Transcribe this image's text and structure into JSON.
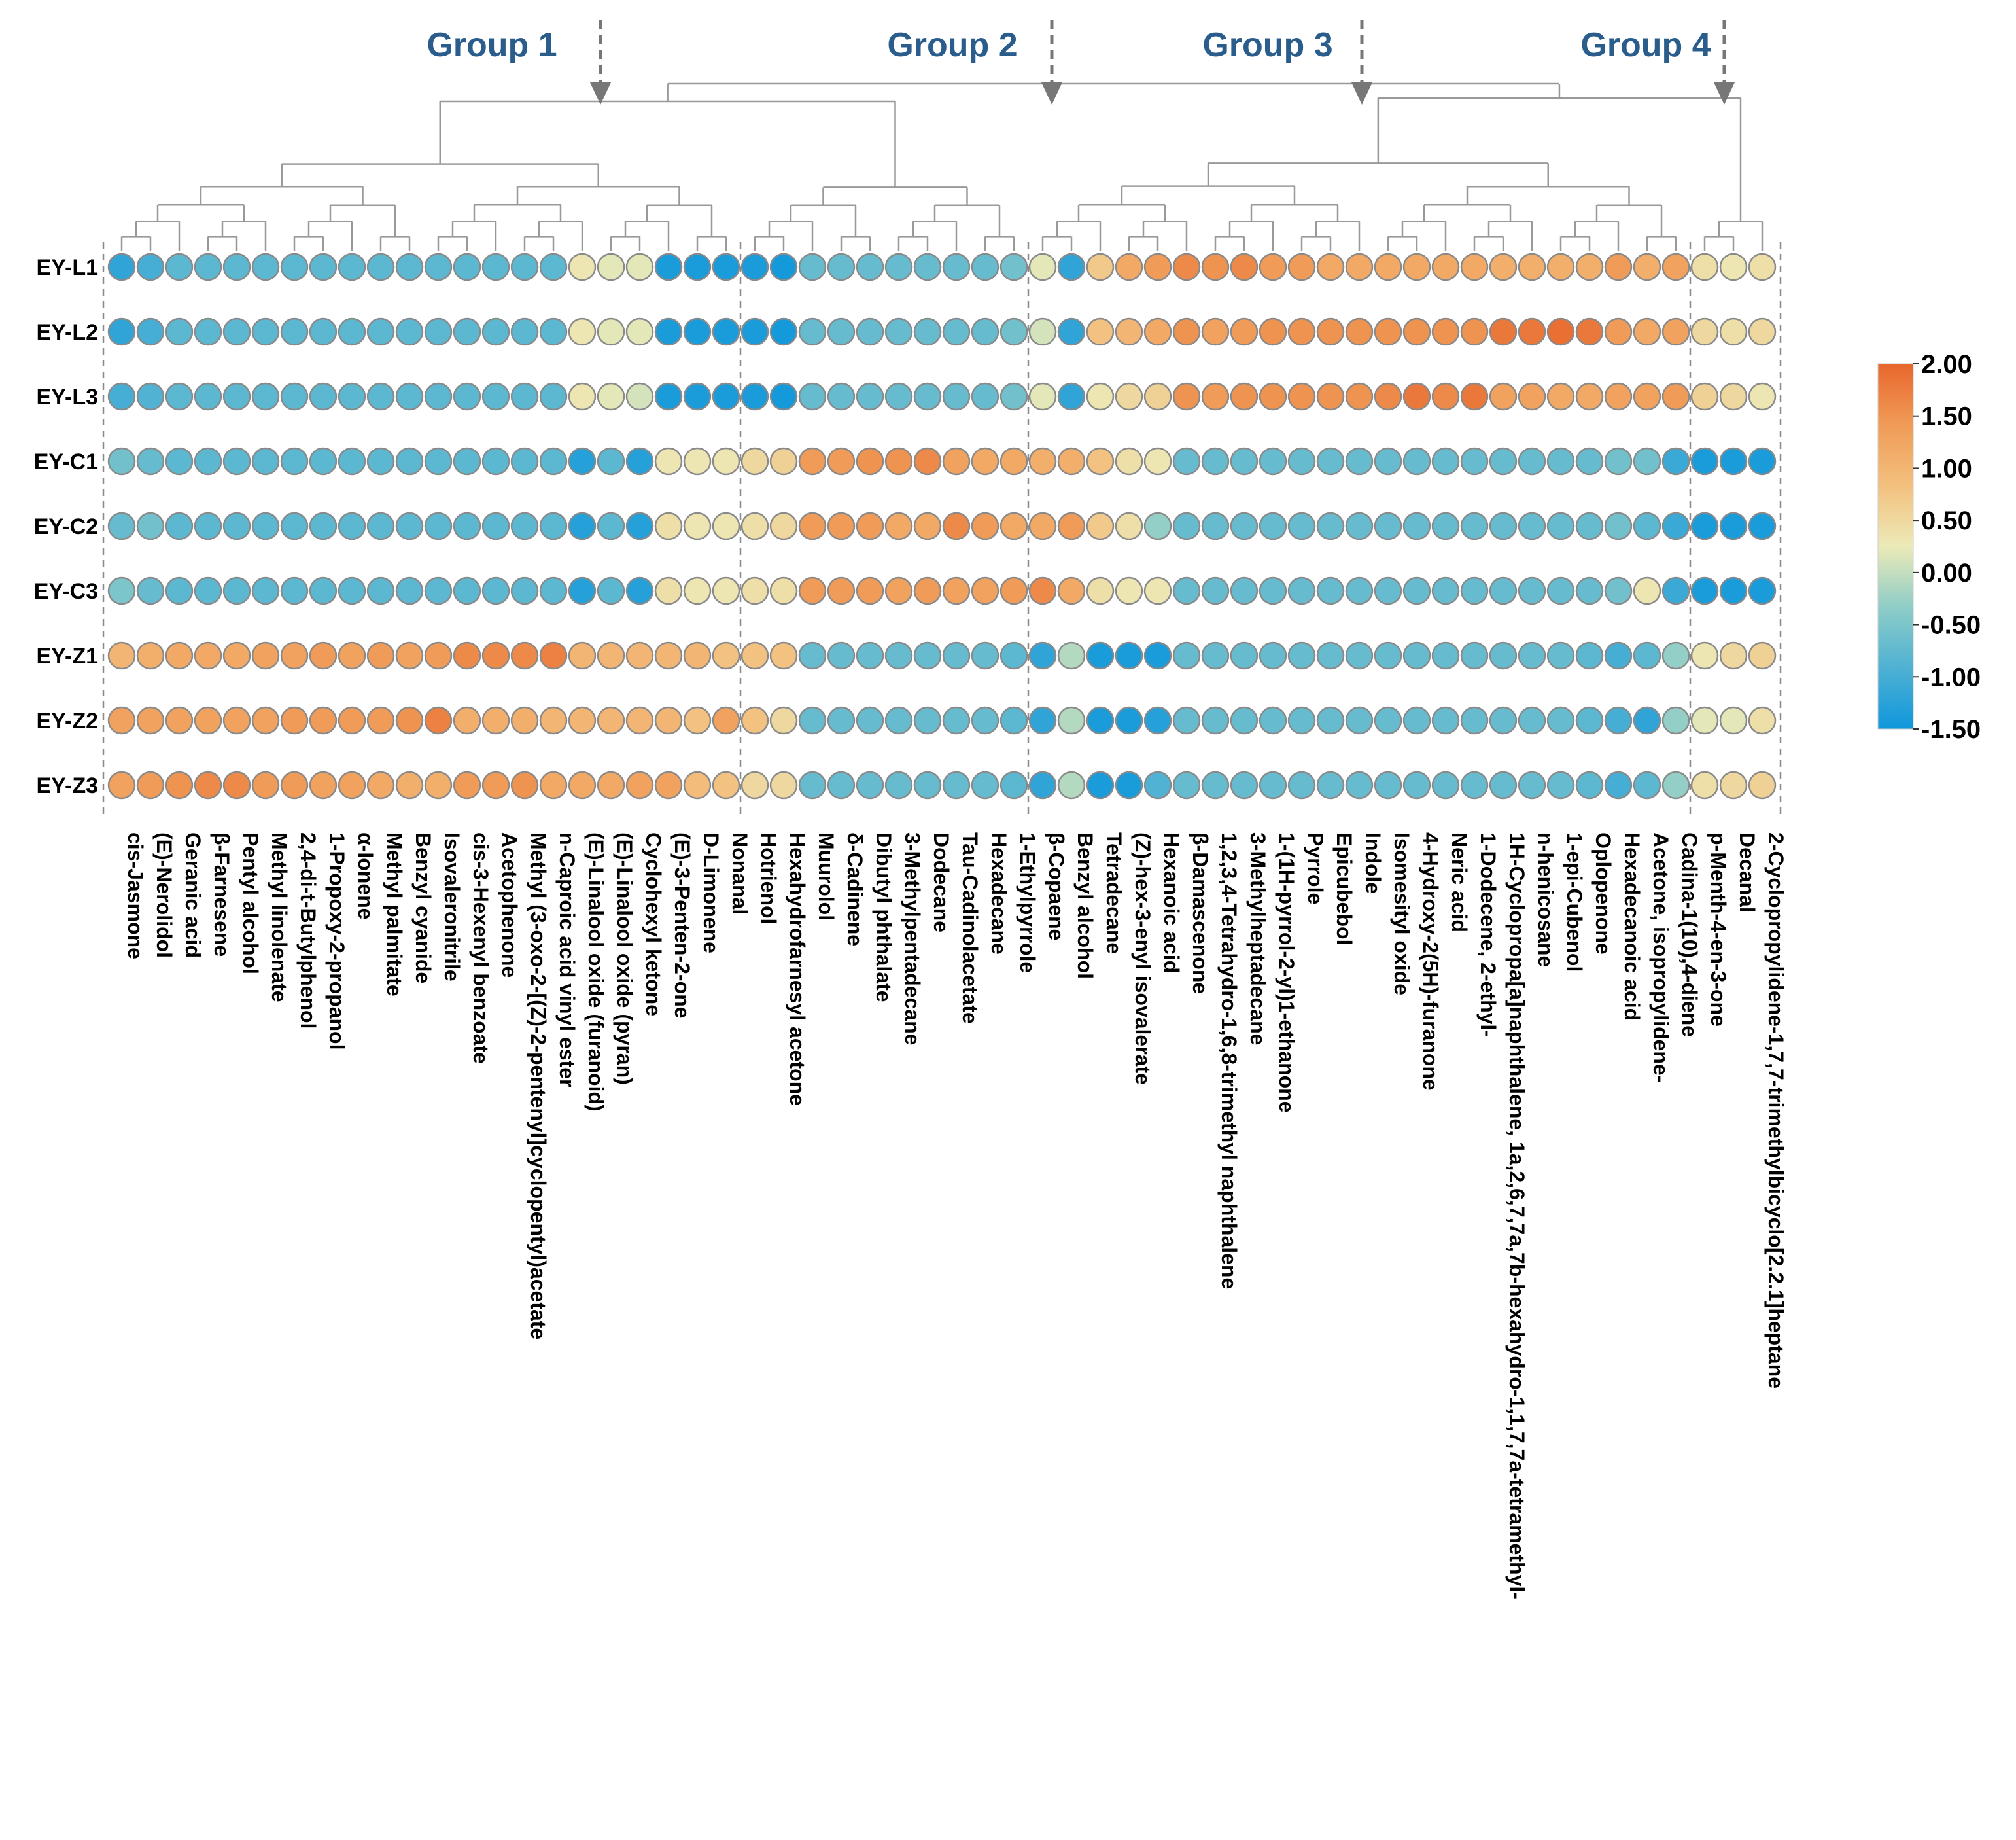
{
  "chart_data": {
    "type": "heatmap",
    "title": "",
    "groups": [
      "Group 1",
      "Group 2",
      "Group 3",
      "Group 4"
    ],
    "group_boundaries_after_index": [
      21,
      31,
      54
    ],
    "rows": [
      "EY-L1",
      "EY-L2",
      "EY-L3",
      "EY-C1",
      "EY-C2",
      "EY-C3",
      "EY-Z1",
      "EY-Z2",
      "EY-Z3"
    ],
    "columns": [
      "cis-Jasmone",
      "(E)-Nerolidol",
      "Geranic acid",
      "β-Farnesene",
      "Pentyl alcohol",
      "Methyl linolenate",
      "2,4-di-t-Butylphenol",
      "1-Propoxy-2-propanol",
      "α-Ionene",
      "Methyl palmitate",
      "Benzyl cyanide",
      "Isovaleronitrile",
      "cis-3-Hexenyl benzoate",
      "Acetophenone",
      "Methyl (3-oxo-2-[(Z)-2-pentenyl]cyclopentyl)acetate",
      "n-Caproic acid vinyl ester",
      "(E)-Linalool oxide (furanoid)",
      "(E)-Linalool oxide (pyran)",
      "Cyclohexyl ketone",
      "(E)-3-Penten-2-one",
      "D-Limonene",
      "Nonanal",
      "Hotrienol",
      "Hexahydrofarnesyl acetone",
      "Muurolol",
      "δ-Cadinene",
      "Dibutyl phthalate",
      "3-Methylpentadecane",
      "Dodecane",
      "Tau-Cadinolacetate",
      "Hexadecane",
      "1-Ethylpyrrole",
      "β-Copaene",
      "Benzyl alcohol",
      "Tetradecane",
      "(Z)-hex-3-enyl isovalerate",
      "Hexanoic acid",
      "β-Damascenone",
      "1,2,3,4-Tetrahydro-1,6,8-trimethyl naphthalene",
      "3-Methylheptadecane",
      "1-(1H-pyrrol-2-yl)1-ethanone",
      "Pyrrole",
      "Epicubebol",
      "Indole",
      "Isomesityl oxide",
      "4-Hydroxy-2(5H)-furanone",
      "Neric acid",
      "1-Dodecene, 2-ethyl-",
      "1H-Cyclopropa[a]naphthalene, 1a,2,6,7,7a,7b-hexahydro-1,1,7,7a-tetramethyl-",
      "n-henicosane",
      "1-epi-Cubenol",
      "Oplopenone",
      "Hexadecanoic acid",
      "Acetone, isopropylidene-",
      "Cadina-1(10),4-diene",
      "p-Menth-4-en-3-one",
      "Decanal",
      "2-Cyclopropylidene-1,7,7-trimethylbicyclo[2.2.1]heptane"
    ],
    "values": [
      [
        -1.2,
        -1.0,
        -0.8,
        -0.8,
        -0.8,
        -0.8,
        -0.8,
        -0.8,
        -0.8,
        -0.8,
        -0.8,
        -0.8,
        -0.8,
        -0.8,
        -0.8,
        -0.8,
        0.3,
        0.2,
        0.2,
        -1.4,
        -1.4,
        -1.4,
        -1.4,
        -1.45,
        -0.7,
        -0.7,
        -0.7,
        -0.7,
        -0.7,
        -0.7,
        -0.7,
        -0.6,
        0.2,
        -1.2,
        0.7,
        1.2,
        1.4,
        1.6,
        1.5,
        1.6,
        1.4,
        1.4,
        1.2,
        1.2,
        1.2,
        1.2,
        1.2,
        1.2,
        1.1,
        1.1,
        1.1,
        1.1,
        1.4,
        1.1,
        1.3,
        0.4,
        0.3,
        0.4
      ],
      [
        -1.2,
        -1.0,
        -0.8,
        -0.8,
        -0.8,
        -0.8,
        -0.8,
        -0.8,
        -0.8,
        -0.8,
        -0.8,
        -0.8,
        -0.8,
        -0.8,
        -0.8,
        -0.8,
        0.3,
        0.2,
        0.2,
        -1.4,
        -1.4,
        -1.4,
        -1.4,
        -1.45,
        -0.7,
        -0.7,
        -0.7,
        -0.7,
        -0.7,
        -0.7,
        -0.7,
        -0.6,
        0.1,
        -1.2,
        0.8,
        1.0,
        1.2,
        1.5,
        1.3,
        1.4,
        1.5,
        1.5,
        1.5,
        1.5,
        1.5,
        1.5,
        1.5,
        1.5,
        1.8,
        1.8,
        1.9,
        1.8,
        1.4,
        1.2,
        1.3,
        0.5,
        0.4,
        0.5
      ],
      [
        -1.0,
        -0.9,
        -0.8,
        -0.8,
        -0.8,
        -0.8,
        -0.8,
        -0.8,
        -0.8,
        -0.8,
        -0.8,
        -0.8,
        -0.8,
        -0.8,
        -0.8,
        -0.8,
        0.3,
        0.2,
        0.1,
        -1.4,
        -1.4,
        -1.4,
        -1.4,
        -1.45,
        -0.7,
        -0.7,
        -0.7,
        -0.7,
        -0.7,
        -0.7,
        -0.7,
        -0.6,
        0.2,
        -1.2,
        0.3,
        0.5,
        0.6,
        1.5,
        1.4,
        1.5,
        1.5,
        1.5,
        1.5,
        1.5,
        1.6,
        1.8,
        1.6,
        1.8,
        1.3,
        1.3,
        1.2,
        1.2,
        1.3,
        1.3,
        1.4,
        0.6,
        0.5,
        0.3
      ],
      [
        -0.6,
        -0.7,
        -0.8,
        -0.8,
        -0.8,
        -0.8,
        -0.8,
        -0.8,
        -0.8,
        -0.8,
        -0.8,
        -0.8,
        -0.8,
        -0.8,
        -0.8,
        -0.8,
        -1.3,
        -0.8,
        -1.3,
        0.3,
        0.3,
        0.3,
        0.5,
        0.6,
        1.4,
        1.4,
        1.5,
        1.5,
        1.6,
        1.3,
        1.2,
        1.2,
        1.1,
        1.1,
        0.8,
        0.4,
        0.3,
        -0.7,
        -0.7,
        -0.7,
        -0.7,
        -0.7,
        -0.7,
        -0.7,
        -0.7,
        -0.7,
        -0.7,
        -0.7,
        -0.7,
        -0.7,
        -0.7,
        -0.7,
        -0.6,
        -0.6,
        -1.1,
        -1.4,
        -1.4,
        -1.4
      ],
      [
        -0.7,
        -0.6,
        -0.8,
        -0.8,
        -0.8,
        -0.8,
        -0.8,
        -0.8,
        -0.8,
        -0.8,
        -0.8,
        -0.8,
        -0.8,
        -0.8,
        -0.8,
        -0.8,
        -1.3,
        -0.8,
        -1.3,
        0.4,
        0.3,
        0.3,
        0.4,
        0.5,
        1.4,
        1.4,
        1.4,
        1.2,
        1.2,
        1.6,
        1.4,
        1.2,
        1.2,
        1.4,
        0.7,
        0.4,
        -0.3,
        -0.7,
        -0.7,
        -0.7,
        -0.7,
        -0.7,
        -0.7,
        -0.7,
        -0.7,
        -0.7,
        -0.7,
        -0.7,
        -0.7,
        -0.7,
        -0.7,
        -0.7,
        -0.6,
        -0.8,
        -1.1,
        -1.4,
        -1.4,
        -1.4
      ],
      [
        -0.5,
        -0.7,
        -0.8,
        -0.8,
        -0.8,
        -0.8,
        -0.8,
        -0.8,
        -0.8,
        -0.8,
        -0.8,
        -0.8,
        -0.8,
        -0.8,
        -0.8,
        -0.8,
        -1.3,
        -0.8,
        -1.3,
        0.4,
        0.3,
        0.3,
        0.4,
        0.4,
        1.4,
        1.4,
        1.4,
        1.3,
        1.4,
        1.3,
        1.3,
        1.4,
        1.6,
        1.2,
        0.4,
        0.3,
        0.3,
        -0.7,
        -0.7,
        -0.7,
        -0.7,
        -0.7,
        -0.7,
        -0.7,
        -0.7,
        -0.7,
        -0.7,
        -0.7,
        -0.7,
        -0.7,
        -0.7,
        -0.7,
        -0.6,
        0.3,
        -1.1,
        -1.4,
        -1.4,
        -1.4
      ],
      [
        1.0,
        1.1,
        1.2,
        1.2,
        1.2,
        1.3,
        1.3,
        1.4,
        1.3,
        1.4,
        1.3,
        1.4,
        1.6,
        1.6,
        1.6,
        1.7,
        1.0,
        1.0,
        1.0,
        1.0,
        1.0,
        0.8,
        0.8,
        0.8,
        -0.7,
        -0.7,
        -0.7,
        -0.7,
        -0.7,
        -0.7,
        -0.7,
        -0.8,
        -1.2,
        -0.1,
        -1.4,
        -1.4,
        -1.4,
        -0.7,
        -0.7,
        -0.7,
        -0.7,
        -0.7,
        -0.7,
        -0.7,
        -0.7,
        -0.7,
        -0.7,
        -0.7,
        -0.7,
        -0.7,
        -0.7,
        -0.8,
        -1.0,
        -0.8,
        -0.3,
        0.3,
        0.5,
        0.6
      ],
      [
        1.3,
        1.3,
        1.3,
        1.3,
        1.3,
        1.3,
        1.4,
        1.4,
        1.4,
        1.4,
        1.5,
        1.7,
        1.1,
        1.1,
        1.1,
        1.0,
        1.0,
        1.0,
        1.0,
        1.0,
        0.8,
        1.3,
        0.8,
        0.5,
        -0.7,
        -0.7,
        -0.7,
        -0.7,
        -0.7,
        -0.7,
        -0.7,
        -0.8,
        -1.2,
        -0.1,
        -1.4,
        -1.4,
        -1.3,
        -0.7,
        -0.7,
        -0.7,
        -0.7,
        -0.7,
        -0.7,
        -0.7,
        -0.7,
        -0.7,
        -0.7,
        -0.7,
        -0.7,
        -0.7,
        -0.7,
        -0.8,
        -1.0,
        -1.2,
        -0.3,
        0.2,
        0.2,
        0.4
      ],
      [
        1.3,
        1.4,
        1.5,
        1.6,
        1.6,
        1.4,
        1.4,
        1.3,
        1.3,
        1.2,
        1.1,
        1.1,
        1.4,
        1.4,
        1.5,
        1.2,
        1.2,
        1.2,
        1.3,
        1.3,
        0.9,
        0.8,
        0.5,
        0.5,
        -0.7,
        -0.7,
        -0.7,
        -0.7,
        -0.7,
        -0.7,
        -0.7,
        -0.8,
        -1.2,
        -0.1,
        -1.4,
        -1.4,
        -0.9,
        -0.7,
        -0.7,
        -0.7,
        -0.7,
        -0.7,
        -0.7,
        -0.7,
        -0.7,
        -0.7,
        -0.7,
        -0.7,
        -0.7,
        -0.7,
        -0.7,
        -0.8,
        -1.0,
        -0.8,
        -0.3,
        0.4,
        0.5,
        0.6
      ]
    ],
    "colorbar": {
      "min": -1.5,
      "max": 2.0,
      "ticks": [
        "2.00",
        "1.50",
        "1.00",
        "0.50",
        "0.00",
        "-0.50",
        "-1.00",
        "-1.50"
      ],
      "colors": [
        "#0f97dc",
        "#4fb1d3",
        "#8ecdc7",
        "#eceab8",
        "#f3c07e",
        "#f09b57",
        "#e8662c"
      ]
    }
  },
  "colors": {
    "group_label": "#2b5d8c",
    "arrow": "#777777",
    "dendrogram": "#999999",
    "circle_stroke": "#8a8a8a"
  }
}
